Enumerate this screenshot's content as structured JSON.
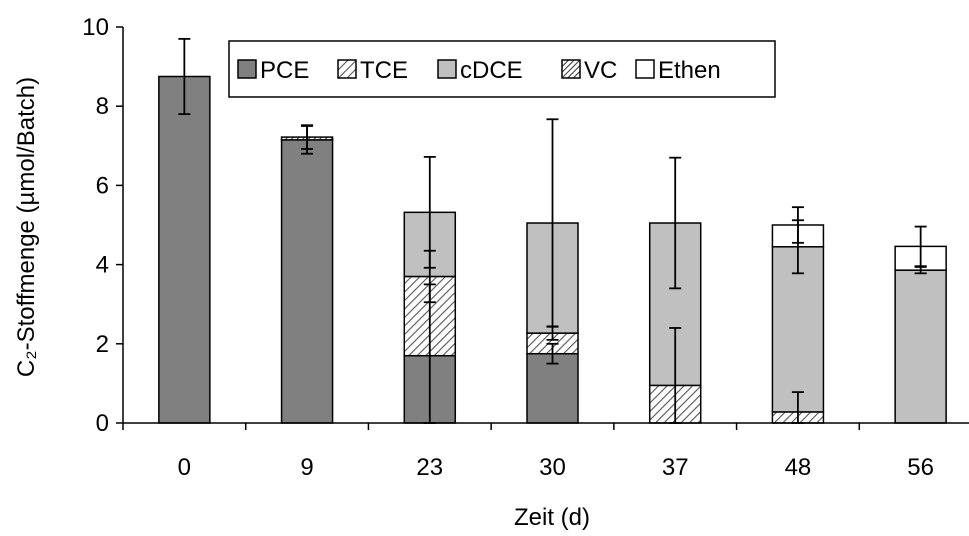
{
  "chart_data": {
    "type": "bar",
    "stacked": true,
    "xlabel": "Zeit (d)",
    "ylabel": "C₂-Stoffmenge (µmol/Batch)",
    "ylim": [
      0,
      10
    ],
    "y_ticks": [
      "0",
      "2",
      "4",
      "6",
      "8",
      "10"
    ],
    "categories": [
      "0",
      "9",
      "23",
      "30",
      "37",
      "48",
      "56"
    ],
    "grid": false,
    "legend_position": "top",
    "series": [
      {
        "name": "PCE",
        "color": "#808080",
        "pattern": "solid",
        "values": [
          8.75,
          7.15,
          1.7,
          1.75,
          0,
          0,
          0
        ],
        "error": [
          0.95,
          0.35,
          1.8,
          0.25,
          0,
          0,
          0
        ]
      },
      {
        "name": "TCE",
        "color": "#c0c0c0",
        "pattern": "diagonal-hatch",
        "values": [
          0,
          0,
          2.0,
          0.52,
          0.95,
          0.28,
          0
        ],
        "error": [
          0,
          0,
          0.65,
          0.17,
          1.45,
          0.5,
          0
        ]
      },
      {
        "name": "cDCE",
        "color": "#c0c0c0",
        "pattern": "solid",
        "values": [
          0,
          0,
          1.62,
          2.78,
          4.1,
          4.17,
          3.86
        ],
        "error": [
          0,
          0,
          1.4,
          2.62,
          1.65,
          0.67,
          0.08
        ]
      },
      {
        "name": "VC",
        "color": "#808080",
        "pattern": "dense-hatch",
        "values": [
          0,
          0.07,
          0,
          0,
          0,
          0,
          0
        ],
        "error": [
          0,
          0.3,
          0,
          0,
          0,
          0,
          0
        ]
      },
      {
        "name": "Ethen",
        "color": "#ffffff",
        "pattern": "solid",
        "values": [
          0,
          0,
          0,
          0,
          0,
          0.55,
          0.6
        ],
        "error": [
          0,
          0,
          0,
          0,
          0,
          0.45,
          0.5
        ]
      }
    ]
  }
}
